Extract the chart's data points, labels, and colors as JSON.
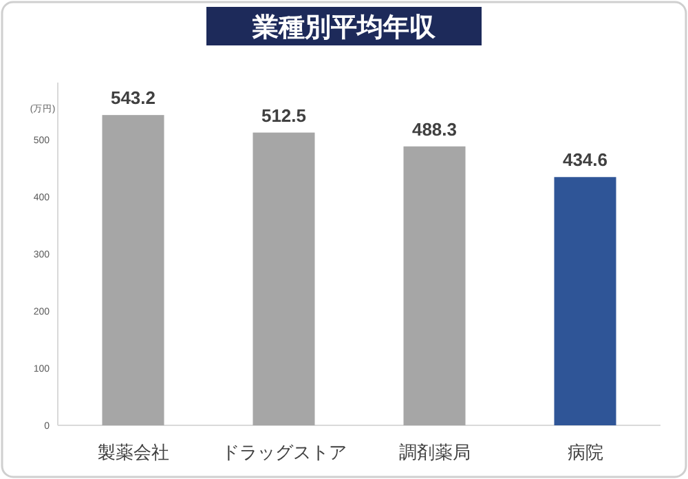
{
  "chart_data": {
    "type": "bar",
    "title": "業種別平均年収",
    "ylabel": "(万円)",
    "categories": [
      "製薬会社",
      "ドラッグストア",
      "調剤薬局",
      "病院"
    ],
    "values": [
      543.2,
      512.5,
      488.3,
      434.6
    ],
    "colors": [
      "#a6a6a6",
      "#a6a6a6",
      "#a6a6a6",
      "#2f5597"
    ],
    "ylim": [
      0,
      600
    ],
    "yticks": [
      0,
      100,
      200,
      300,
      400,
      500
    ],
    "data_labels": true
  }
}
